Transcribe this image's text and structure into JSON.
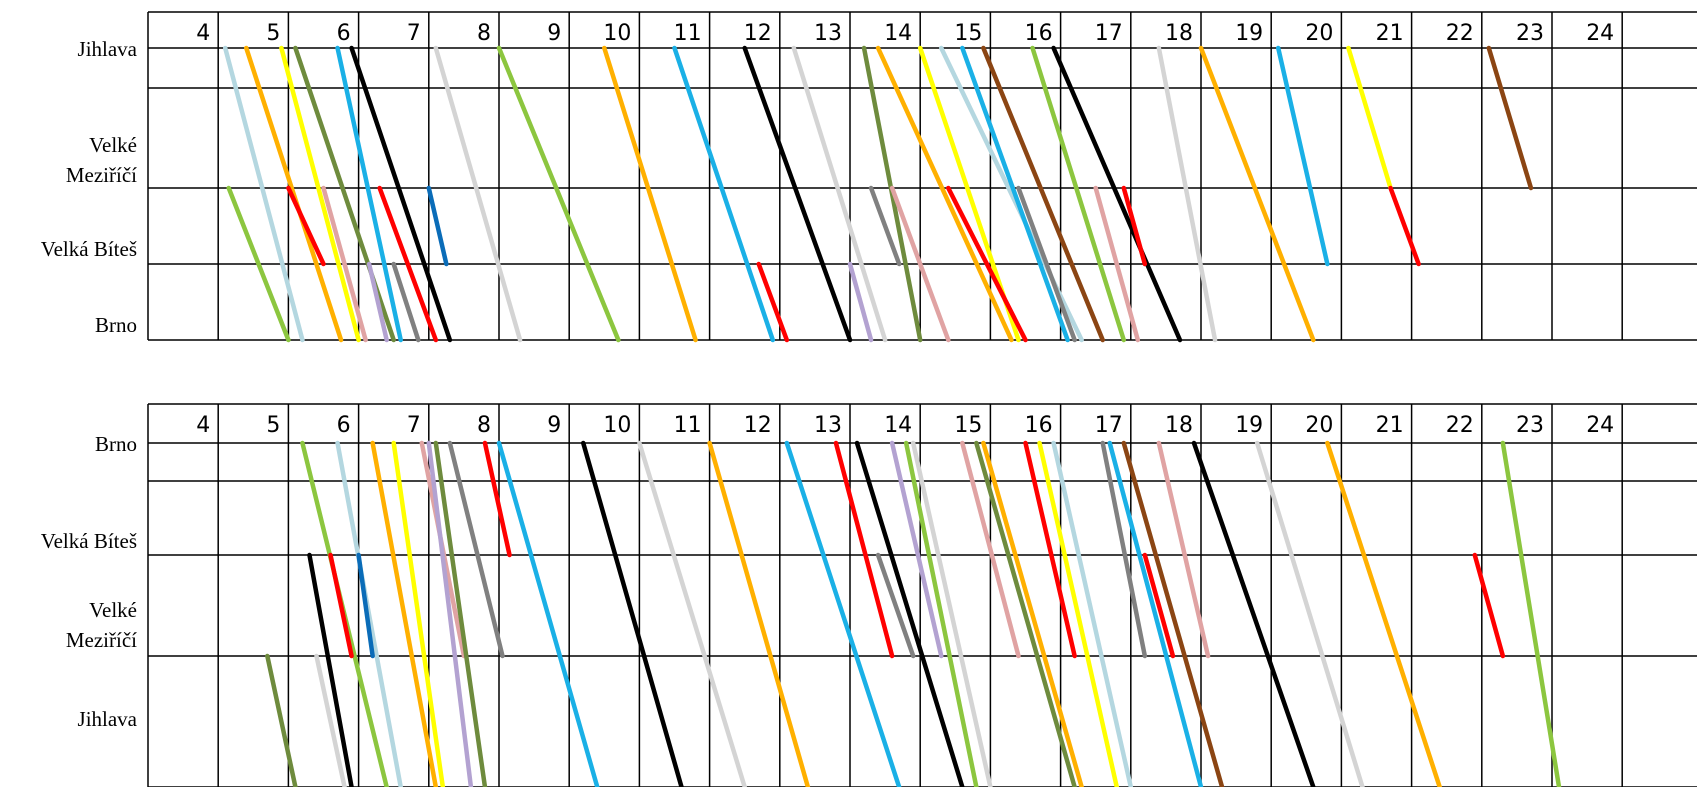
{
  "hours": [
    "4",
    "5",
    "6",
    "7",
    "8",
    "9",
    "10",
    "11",
    "12",
    "13",
    "14",
    "15",
    "16",
    "17",
    "18",
    "19",
    "20",
    "21",
    "22",
    "23",
    "24"
  ],
  "colors": {
    "lightblue": "#b4d7e0",
    "orange": "#ffb000",
    "yellow": "#ffff00",
    "olive": "#6e8b3d",
    "cyan": "#1ab0e6",
    "black": "#000000",
    "lightgray": "#d4d4d4",
    "green": "#8cc63f",
    "red": "#ff0000",
    "pink": "#e0a3a3",
    "lavender": "#b3a2d1",
    "gray": "#808080",
    "darkblue": "#0a6cb8",
    "brown": "#8b4513"
  },
  "panels": [
    {
      "id": "top",
      "stations": [
        {
          "label_lines": [
            "Jihlava"
          ]
        },
        {
          "label_lines": [
            "Velké",
            "Meziříčí"
          ]
        },
        {
          "label_lines": [
            "Velká Bíteš"
          ]
        },
        {
          "label_lines": [
            "Brno"
          ]
        }
      ],
      "trains": [
        {
          "color": "lightblue",
          "dep": 5.1,
          "from": 0,
          "arr": 6.2,
          "to": 3
        },
        {
          "color": "green",
          "dep": 5.15,
          "from": 1,
          "arr": 6.0,
          "to": 3
        },
        {
          "color": "orange",
          "dep": 5.4,
          "from": 0,
          "arr": 6.75,
          "to": 3
        },
        {
          "color": "yellow",
          "dep": 5.9,
          "from": 0,
          "arr": 7.0,
          "to": 3
        },
        {
          "color": "red",
          "dep": 6.0,
          "from": 1,
          "arr": 6.5,
          "to": 2
        },
        {
          "color": "olive",
          "dep": 6.1,
          "from": 0,
          "arr": 7.5,
          "to": 3
        },
        {
          "color": "pink",
          "dep": 6.5,
          "from": 1,
          "arr": 7.1,
          "to": 3
        },
        {
          "color": "cyan",
          "dep": 6.7,
          "from": 0,
          "arr": 7.6,
          "to": 3
        },
        {
          "color": "black",
          "dep": 6.9,
          "from": 0,
          "arr": 8.3,
          "to": 3
        },
        {
          "color": "lavender",
          "dep": 7.15,
          "from": 2,
          "arr": 7.4,
          "to": 3
        },
        {
          "color": "red",
          "dep": 7.3,
          "from": 1,
          "arr": 8.1,
          "to": 3
        },
        {
          "color": "gray",
          "dep": 7.5,
          "from": 2,
          "arr": 7.85,
          "to": 3
        },
        {
          "color": "darkblue",
          "dep": 8.0,
          "from": 1,
          "arr": 8.25,
          "to": 2
        },
        {
          "color": "lightgray",
          "dep": 8.1,
          "from": 0,
          "arr": 9.3,
          "to": 3
        },
        {
          "color": "green",
          "dep": 9.0,
          "from": 0,
          "arr": 10.7,
          "to": 3
        },
        {
          "color": "orange",
          "dep": 10.5,
          "from": 0,
          "arr": 11.8,
          "to": 3
        },
        {
          "color": "cyan",
          "dep": 11.5,
          "from": 0,
          "arr": 12.9,
          "to": 3
        },
        {
          "color": "black",
          "dep": 12.5,
          "from": 0,
          "arr": 14.0,
          "to": 3
        },
        {
          "color": "red",
          "dep": 12.7,
          "from": 2,
          "arr": 13.1,
          "to": 3
        },
        {
          "color": "lightgray",
          "dep": 13.2,
          "from": 0,
          "arr": 14.5,
          "to": 3
        },
        {
          "color": "lavender",
          "dep": 14.0,
          "from": 2,
          "arr": 14.3,
          "to": 3
        },
        {
          "color": "olive",
          "dep": 14.2,
          "from": 0,
          "arr": 15.0,
          "to": 3
        },
        {
          "color": "gray",
          "dep": 14.3,
          "from": 1,
          "arr": 14.7,
          "to": 2
        },
        {
          "color": "orange",
          "dep": 14.4,
          "from": 0,
          "arr": 16.3,
          "to": 3
        },
        {
          "color": "pink",
          "dep": 14.6,
          "from": 1,
          "arr": 15.4,
          "to": 3
        },
        {
          "color": "yellow",
          "dep": 15.0,
          "from": 0,
          "arr": 16.4,
          "to": 3
        },
        {
          "color": "lightblue",
          "dep": 15.3,
          "from": 0,
          "arr": 17.3,
          "to": 3
        },
        {
          "color": "red",
          "dep": 15.4,
          "from": 1,
          "arr": 16.5,
          "to": 3
        },
        {
          "color": "cyan",
          "dep": 15.6,
          "from": 0,
          "arr": 17.1,
          "to": 3
        },
        {
          "color": "brown",
          "dep": 15.9,
          "from": 0,
          "arr": 17.6,
          "to": 3
        },
        {
          "color": "gray",
          "dep": 16.4,
          "from": 1,
          "arr": 17.2,
          "to": 3
        },
        {
          "color": "green",
          "dep": 16.6,
          "from": 0,
          "arr": 17.9,
          "to": 3
        },
        {
          "color": "black",
          "dep": 16.9,
          "from": 0,
          "arr": 18.7,
          "to": 3
        },
        {
          "color": "pink",
          "dep": 17.5,
          "from": 1,
          "arr": 18.1,
          "to": 3
        },
        {
          "color": "red",
          "dep": 17.9,
          "from": 1,
          "arr": 18.2,
          "to": 2
        },
        {
          "color": "lightgray",
          "dep": 18.4,
          "from": 0,
          "arr": 19.2,
          "to": 3
        },
        {
          "color": "orange",
          "dep": 19.0,
          "from": 0,
          "arr": 20.6,
          "to": 3
        },
        {
          "color": "cyan",
          "dep": 20.1,
          "from": 0,
          "arr": 20.8,
          "to": 2
        },
        {
          "color": "yellow",
          "dep": 21.1,
          "from": 0,
          "arr": 21.7,
          "to": 1
        },
        {
          "color": "red",
          "dep": 21.7,
          "from": 1,
          "arr": 22.1,
          "to": 2
        },
        {
          "color": "brown",
          "dep": 23.1,
          "from": 0,
          "arr": 23.7,
          "to": 1
        }
      ]
    },
    {
      "id": "bottom",
      "stations": [
        {
          "label_lines": [
            "Brno"
          ]
        },
        {
          "label_lines": [
            "Velká Bíteš"
          ]
        },
        {
          "label_lines": [
            "Velké",
            "Meziříčí"
          ]
        },
        {
          "label_lines": [
            "Jihlava"
          ]
        }
      ],
      "trains": [
        {
          "color": "olive",
          "dep": 5.7,
          "from": 2,
          "arr": 6.1,
          "to": 3
        },
        {
          "color": "black",
          "dep": 6.3,
          "from": 1,
          "arr": 6.9,
          "to": 3
        },
        {
          "color": "lightgray",
          "dep": 6.4,
          "from": 2,
          "arr": 6.8,
          "to": 3
        },
        {
          "color": "green",
          "dep": 6.2,
          "from": 0,
          "arr": 7.4,
          "to": 3
        },
        {
          "color": "red",
          "dep": 6.6,
          "from": 1,
          "arr": 6.9,
          "to": 2
        },
        {
          "color": "lightblue",
          "dep": 6.7,
          "from": 0,
          "arr": 7.6,
          "to": 3
        },
        {
          "color": "darkblue",
          "dep": 7.0,
          "from": 1,
          "arr": 7.2,
          "to": 2
        },
        {
          "color": "orange",
          "dep": 7.2,
          "from": 0,
          "arr": 8.1,
          "to": 3
        },
        {
          "color": "yellow",
          "dep": 7.5,
          "from": 0,
          "arr": 8.2,
          "to": 3
        },
        {
          "color": "pink",
          "dep": 7.9,
          "from": 0,
          "arr": 8.5,
          "to": 2
        },
        {
          "color": "lavender",
          "dep": 8.0,
          "from": 0,
          "arr": 8.6,
          "to": 3
        },
        {
          "color": "olive",
          "dep": 8.1,
          "from": 0,
          "arr": 8.8,
          "to": 3
        },
        {
          "color": "gray",
          "dep": 8.3,
          "from": 0,
          "arr": 9.05,
          "to": 2
        },
        {
          "color": "red",
          "dep": 8.8,
          "from": 0,
          "arr": 9.15,
          "to": 1
        },
        {
          "color": "cyan",
          "dep": 9.0,
          "from": 0,
          "arr": 10.4,
          "to": 3
        },
        {
          "color": "black",
          "dep": 10.2,
          "from": 0,
          "arr": 11.6,
          "to": 3
        },
        {
          "color": "lightgray",
          "dep": 11.0,
          "from": 0,
          "arr": 12.5,
          "to": 3
        },
        {
          "color": "orange",
          "dep": 12.0,
          "from": 0,
          "arr": 13.4,
          "to": 3
        },
        {
          "color": "cyan",
          "dep": 13.1,
          "from": 0,
          "arr": 14.7,
          "to": 3
        },
        {
          "color": "red",
          "dep": 13.8,
          "from": 0,
          "arr": 14.6,
          "to": 2
        },
        {
          "color": "black",
          "dep": 14.1,
          "from": 0,
          "arr": 15.6,
          "to": 3
        },
        {
          "color": "gray",
          "dep": 14.4,
          "from": 1,
          "arr": 14.9,
          "to": 2
        },
        {
          "color": "lavender",
          "dep": 14.6,
          "from": 0,
          "arr": 15.3,
          "to": 2
        },
        {
          "color": "green",
          "dep": 14.8,
          "from": 0,
          "arr": 15.8,
          "to": 3
        },
        {
          "color": "lightgray",
          "dep": 14.9,
          "from": 0,
          "arr": 16.0,
          "to": 3
        },
        {
          "color": "pink",
          "dep": 15.6,
          "from": 0,
          "arr": 16.4,
          "to": 2
        },
        {
          "color": "olive",
          "dep": 15.8,
          "from": 0,
          "arr": 17.2,
          "to": 3
        },
        {
          "color": "orange",
          "dep": 15.9,
          "from": 0,
          "arr": 17.3,
          "to": 3
        },
        {
          "color": "red",
          "dep": 16.5,
          "from": 0,
          "arr": 17.2,
          "to": 2
        },
        {
          "color": "yellow",
          "dep": 16.7,
          "from": 0,
          "arr": 17.8,
          "to": 3
        },
        {
          "color": "lightblue",
          "dep": 16.9,
          "from": 0,
          "arr": 18.0,
          "to": 3
        },
        {
          "color": "gray",
          "dep": 17.6,
          "from": 0,
          "arr": 18.2,
          "to": 2
        },
        {
          "color": "cyan",
          "dep": 17.7,
          "from": 0,
          "arr": 19.0,
          "to": 3
        },
        {
          "color": "brown",
          "dep": 17.9,
          "from": 0,
          "arr": 19.3,
          "to": 3
        },
        {
          "color": "red",
          "dep": 18.2,
          "from": 1,
          "arr": 18.6,
          "to": 2
        },
        {
          "color": "pink",
          "dep": 18.4,
          "from": 0,
          "arr": 19.1,
          "to": 2
        },
        {
          "color": "black",
          "dep": 18.9,
          "from": 0,
          "arr": 20.6,
          "to": 3
        },
        {
          "color": "lightgray",
          "dep": 19.8,
          "from": 0,
          "arr": 21.3,
          "to": 3
        },
        {
          "color": "orange",
          "dep": 20.8,
          "from": 0,
          "arr": 22.4,
          "to": 3
        },
        {
          "color": "red",
          "dep": 22.9,
          "from": 1,
          "arr": 23.3,
          "to": 2
        },
        {
          "color": "green",
          "dep": 23.3,
          "from": 0,
          "arr": 24.1,
          "to": 3
        }
      ]
    }
  ]
}
